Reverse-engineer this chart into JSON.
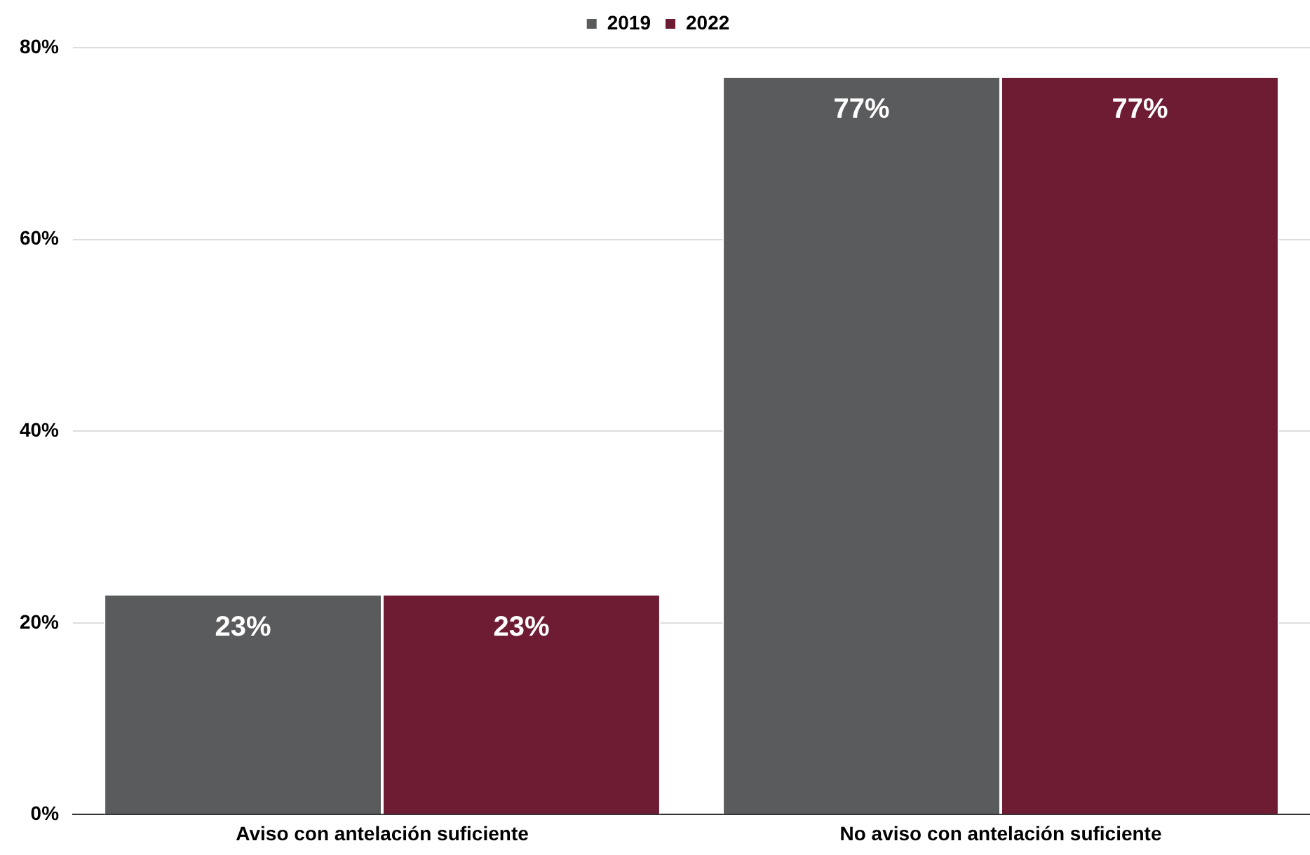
{
  "chart_data": {
    "type": "bar",
    "categories": [
      "Aviso con antelación suficiente",
      "No aviso con antelación suficiente"
    ],
    "series": [
      {
        "name": "2019",
        "color": "#5a5b5d",
        "values": [
          23,
          77
        ],
        "value_labels": [
          "23%",
          "77%"
        ]
      },
      {
        "name": "2022",
        "color": "#6e1c33",
        "values": [
          23,
          77
        ],
        "value_labels": [
          "23%",
          "77%"
        ]
      }
    ],
    "ylim": [
      0,
      80
    ],
    "yticks": [
      {
        "value": 0,
        "label": "0%"
      },
      {
        "value": 20,
        "label": "20%"
      },
      {
        "value": 40,
        "label": "40%"
      },
      {
        "value": 60,
        "label": "60%"
      },
      {
        "value": 80,
        "label": "80%"
      }
    ],
    "grid": "y",
    "legend": "top"
  }
}
